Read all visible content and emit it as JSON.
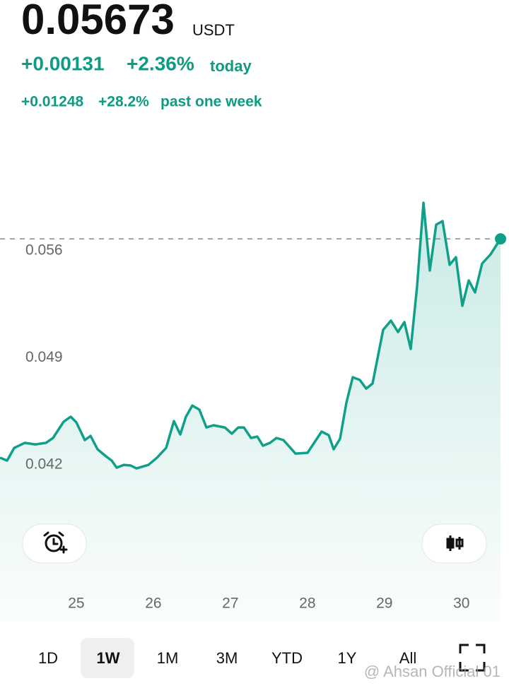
{
  "header": {
    "price": "0.05673",
    "unit": "USDT",
    "change_today": "+0.00131",
    "change_today_pct": "+2.36%",
    "today_label": "today",
    "change_week": "+0.01248",
    "change_week_pct": "+28.2%",
    "week_label": "past one week"
  },
  "chart_data": {
    "type": "line",
    "x": [
      24.01,
      24.102,
      24.194,
      24.331,
      24.469,
      24.606,
      24.698,
      24.836,
      24.928,
      25.001,
      25.111,
      25.185,
      25.276,
      25.386,
      25.46,
      25.524,
      25.616,
      25.708,
      25.781,
      25.937,
      26.047,
      26.166,
      26.267,
      26.35,
      26.423,
      26.506,
      26.598,
      26.689,
      26.781,
      26.928,
      27.02,
      27.102,
      27.176,
      27.268,
      27.35,
      27.423,
      27.515,
      27.598,
      27.69,
      27.846,
      28.002,
      28.185,
      28.277,
      28.341,
      28.424,
      28.506,
      28.589,
      28.681,
      28.763,
      28.846,
      28.983,
      29.084,
      29.176,
      29.259,
      29.341,
      29.424,
      29.506,
      29.589,
      29.672,
      29.754,
      29.846,
      29.928,
      30.011,
      30.094,
      30.176,
      30.268,
      30.378,
      30.507
    ],
    "series": [
      {
        "color": "#10a08a",
        "values": [
          0.04242,
          0.04223,
          0.04306,
          0.04339,
          0.04329,
          0.04339,
          0.04371,
          0.04477,
          0.0451,
          0.04473,
          0.04357,
          0.04385,
          0.04297,
          0.04251,
          0.04223,
          0.04177,
          0.04195,
          0.04191,
          0.04172,
          0.04195,
          0.04242,
          0.04306,
          0.04482,
          0.04394,
          0.0451,
          0.04583,
          0.04556,
          0.0444,
          0.04454,
          0.0444,
          0.04399,
          0.0444,
          0.0444,
          0.04371,
          0.0438,
          0.0432,
          0.04339,
          0.04371,
          0.04357,
          0.04269,
          0.04274,
          0.04413,
          0.04389,
          0.04297,
          0.04366,
          0.04602,
          0.04768,
          0.0475,
          0.04694,
          0.04727,
          0.05078,
          0.05138,
          0.05064,
          0.05129,
          0.04953,
          0.05364,
          0.05909,
          0.05466,
          0.05766,
          0.05789,
          0.05503,
          0.05553,
          0.05235,
          0.05401,
          0.05323,
          0.05512,
          0.05572,
          0.05673
        ]
      }
    ],
    "xlim": [
      24.01,
      30.58
    ],
    "xticks": [
      25,
      26,
      27,
      28,
      29,
      30
    ],
    "ylim": [
      0.0317,
      0.0608
    ],
    "yticks": [
      0.042,
      0.049,
      0.056
    ]
  },
  "time_ranges": [
    "1D",
    "1W",
    "1M",
    "3M",
    "YTD",
    "1Y",
    "All"
  ],
  "watermark": "@ Ahsan Official 01"
}
